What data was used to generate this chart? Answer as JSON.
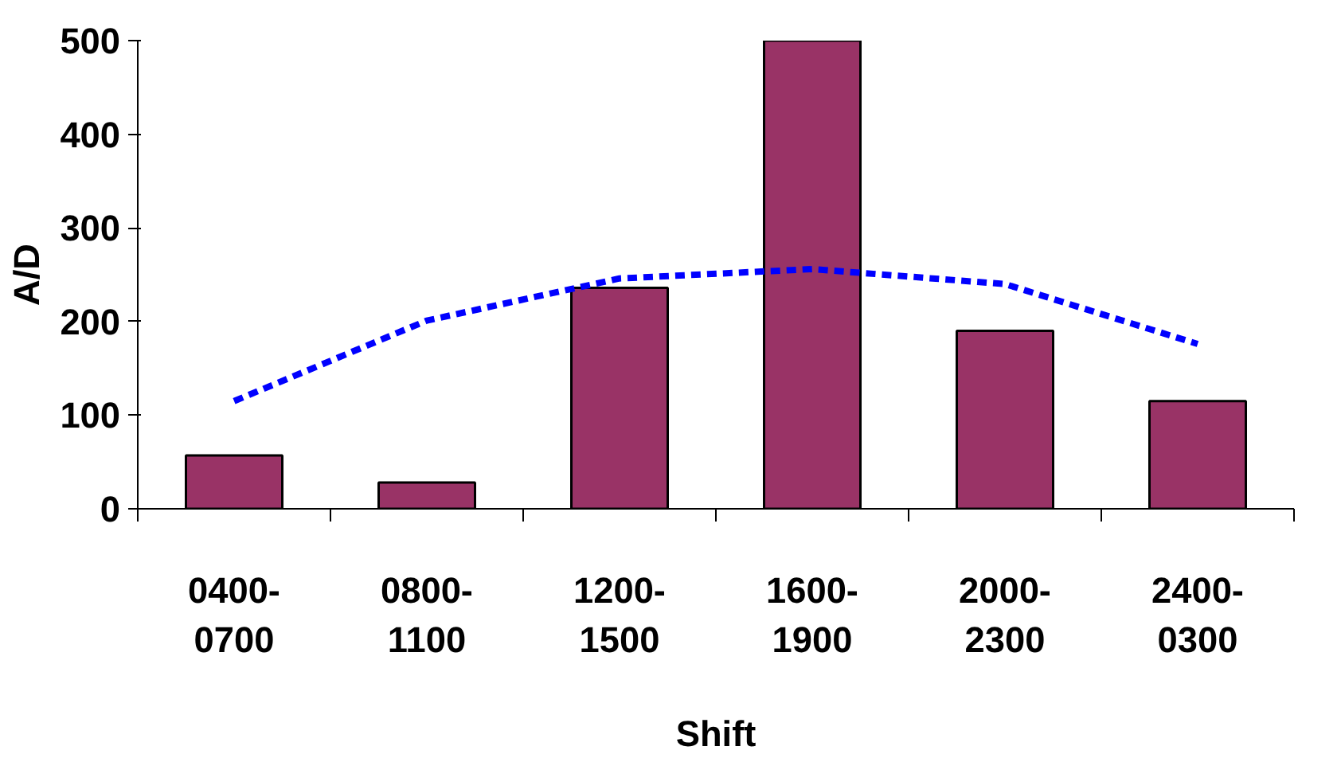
{
  "chart_data": {
    "type": "bar",
    "xlabel": "Shift",
    "ylabel": "A/D",
    "categories": [
      "0400-\n0700",
      "0800-\n1100",
      "1200-\n1500",
      "1600-\n1900",
      "2000-\n2300",
      "2400-\n0300"
    ],
    "series": [
      {
        "color": "#993366",
        "values": [
          57,
          28,
          236,
          500,
          190,
          115
        ]
      },
      {
        "type": "line",
        "color": "#0000ff",
        "line_style": "dashed",
        "x": [
          "0400-\n0700",
          "0800-\n1100",
          "1200-\n1500",
          "1600-\n1900",
          "2000-\n2300",
          "2400-\n0300"
        ],
        "values": [
          115,
          201,
          246,
          256,
          240,
          176
        ]
      }
    ],
    "ylim": [
      0,
      500
    ],
    "yticks": [
      0,
      100,
      200,
      300,
      400,
      500
    ],
    "grid": false
  }
}
